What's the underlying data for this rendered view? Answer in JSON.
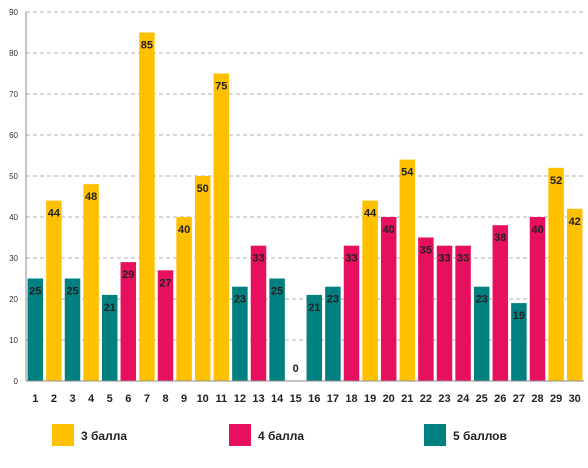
{
  "chart_data": {
    "type": "bar",
    "categories": [
      "1",
      "2",
      "3",
      "4",
      "5",
      "6",
      "7",
      "8",
      "9",
      "10",
      "11",
      "12",
      "13",
      "14",
      "15",
      "16",
      "17",
      "18",
      "19",
      "20",
      "21",
      "22",
      "23",
      "24",
      "25",
      "26",
      "27",
      "28",
      "29",
      "30"
    ],
    "values": [
      25,
      44,
      25,
      48,
      21,
      29,
      85,
      27,
      40,
      50,
      75,
      23,
      33,
      25,
      0,
      21,
      23,
      33,
      44,
      40,
      54,
      35,
      33,
      33,
      23,
      38,
      19,
      40,
      52,
      42
    ],
    "groups": [
      3,
      1,
      3,
      1,
      3,
      2,
      1,
      2,
      1,
      1,
      1,
      3,
      2,
      3,
      3,
      3,
      3,
      2,
      1,
      2,
      1,
      2,
      2,
      2,
      3,
      2,
      3,
      2,
      1,
      1
    ],
    "ylim": [
      0,
      90
    ],
    "yticks": [
      0,
      10,
      20,
      30,
      40,
      50,
      60,
      70,
      80,
      90
    ],
    "grid": true,
    "legend": [
      {
        "name": "3 балла",
        "color": "#FFC000"
      },
      {
        "name": "4 балла",
        "color": "#E6105E"
      },
      {
        "name": "5 баллов",
        "color": "#008080"
      }
    ],
    "legend_position": "bottom"
  }
}
